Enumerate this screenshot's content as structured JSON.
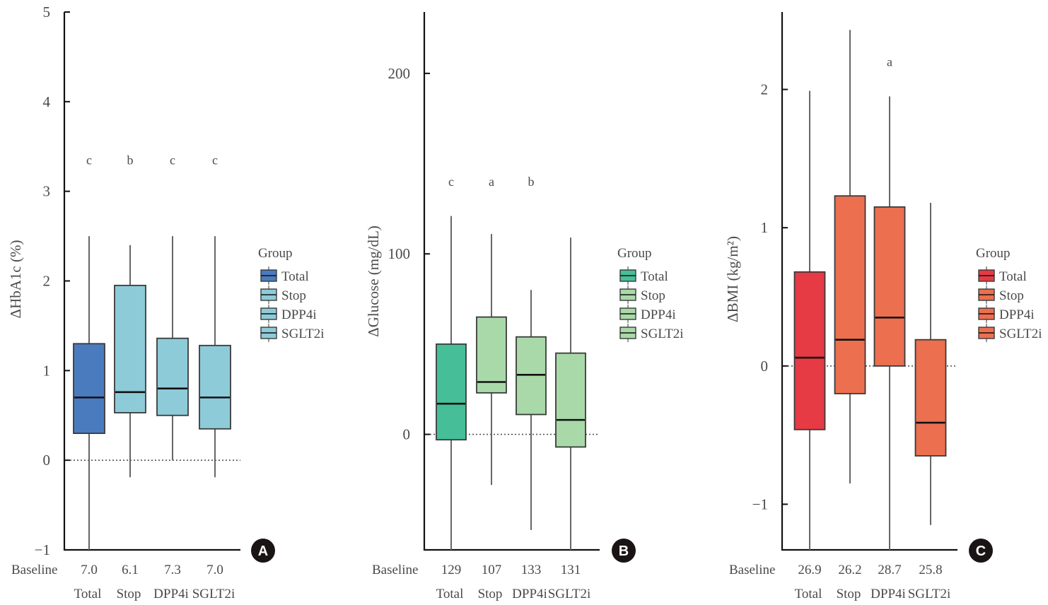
{
  "chart_data": [
    {
      "type": "box",
      "panel": "A",
      "ylabel": "ΔHbA1c (%)",
      "ylim": [
        -1,
        5
      ],
      "yticks": [
        -1,
        0,
        1,
        2,
        3,
        4,
        5
      ],
      "ytick_labels": [
        "−1",
        "0",
        "1",
        "2",
        "3",
        "4",
        "5"
      ],
      "reference_line": 0,
      "categories": [
        "Total",
        "Stop",
        "DPP4i",
        "SGLT2i"
      ],
      "baseline_label": "Baseline",
      "baseline_values": [
        "7.0",
        "6.1",
        "7.3",
        "7.0"
      ],
      "significance": [
        "c",
        "b",
        "c",
        "c"
      ],
      "significance_y": 3.35,
      "boxes": [
        {
          "name": "Total",
          "whisker_low": -1.0,
          "q1": 0.3,
          "median": 0.7,
          "q3": 1.3,
          "whisker_high": 2.5
        },
        {
          "name": "Stop",
          "whisker_low": -0.19,
          "q1": 0.53,
          "median": 0.76,
          "q3": 1.95,
          "whisker_high": 2.4
        },
        {
          "name": "DPP4i",
          "whisker_low": 0.0,
          "q1": 0.5,
          "median": 0.8,
          "q3": 1.36,
          "whisker_high": 2.5
        },
        {
          "name": "SGLT2i",
          "whisker_low": -0.19,
          "q1": 0.35,
          "median": 0.7,
          "q3": 1.28,
          "whisker_high": 2.5
        }
      ],
      "legend": {
        "title": "Group",
        "position": "right",
        "entries": [
          "Total",
          "Stop",
          "DPP4i",
          "SGLT2i"
        ]
      },
      "colors": [
        "#4a7bbf",
        "#8ecbd8",
        "#8ecbd8",
        "#8ecbd8"
      ]
    },
    {
      "type": "box",
      "panel": "B",
      "ylabel": "ΔGlucose (mg/dL)",
      "ylim": [
        -64,
        234
      ],
      "yticks": [
        0,
        100,
        200
      ],
      "ytick_labels": [
        "0",
        "100",
        "200"
      ],
      "reference_line": 0,
      "categories": [
        "Total",
        "Stop",
        "DPP4i",
        "SGLT2i"
      ],
      "baseline_label": "Baseline",
      "baseline_values": [
        "129",
        "107",
        "133",
        "131"
      ],
      "significance": [
        "c",
        "a",
        "b",
        ""
      ],
      "significance_y": 140,
      "boxes": [
        {
          "name": "Total",
          "whisker_low": -64,
          "q1": -3,
          "median": 17,
          "q3": 50,
          "whisker_high": 121
        },
        {
          "name": "Stop",
          "whisker_low": -28,
          "q1": 23,
          "median": 29,
          "q3": 65,
          "whisker_high": 111
        },
        {
          "name": "DPP4i",
          "whisker_low": -53,
          "q1": 11,
          "median": 33,
          "q3": 54,
          "whisker_high": 80
        },
        {
          "name": "SGLT2i",
          "whisker_low": -64,
          "q1": -7,
          "median": 8,
          "q3": 45,
          "whisker_high": 109
        }
      ],
      "legend": {
        "title": "Group",
        "position": "right",
        "entries": [
          "Total",
          "Stop",
          "DPP4i",
          "SGLT2i"
        ]
      },
      "colors": [
        "#46bf99",
        "#a9d9a9",
        "#a9d9a9",
        "#a9d9a9"
      ]
    },
    {
      "type": "box",
      "panel": "C",
      "ylabel": "ΔBMI (kg/m²)",
      "ylim": [
        -1.33,
        2.56
      ],
      "yticks": [
        -1,
        0,
        1,
        2
      ],
      "ytick_labels": [
        "−1",
        "0",
        "1",
        "2"
      ],
      "reference_line": 0,
      "categories": [
        "Total",
        "Stop",
        "DPP4i",
        "SGLT2i"
      ],
      "baseline_label": "Baseline",
      "baseline_values": [
        "26.9",
        "26.2",
        "28.7",
        "25.8"
      ],
      "significance": [
        "",
        "",
        "a",
        ""
      ],
      "significance_y": 2.2,
      "boxes": [
        {
          "name": "Total",
          "whisker_low": -1.33,
          "q1": -0.46,
          "median": 0.06,
          "q3": 0.68,
          "whisker_high": 1.99
        },
        {
          "name": "Stop",
          "whisker_low": -0.85,
          "q1": -0.2,
          "median": 0.19,
          "q3": 1.23,
          "whisker_high": 2.43
        },
        {
          "name": "DPP4i",
          "whisker_low": -1.33,
          "q1": 0.0,
          "median": 0.35,
          "q3": 1.15,
          "whisker_high": 1.95
        },
        {
          "name": "SGLT2i",
          "whisker_low": -1.15,
          "q1": -0.65,
          "median": -0.41,
          "q3": 0.19,
          "whisker_high": 1.18
        }
      ],
      "legend": {
        "title": "Group",
        "position": "right",
        "entries": [
          "Total",
          "Stop",
          "DPP4i",
          "SGLT2i"
        ]
      },
      "colors": [
        "#e63a45",
        "#ec6f50",
        "#ec6f50",
        "#ec6f50"
      ]
    }
  ]
}
